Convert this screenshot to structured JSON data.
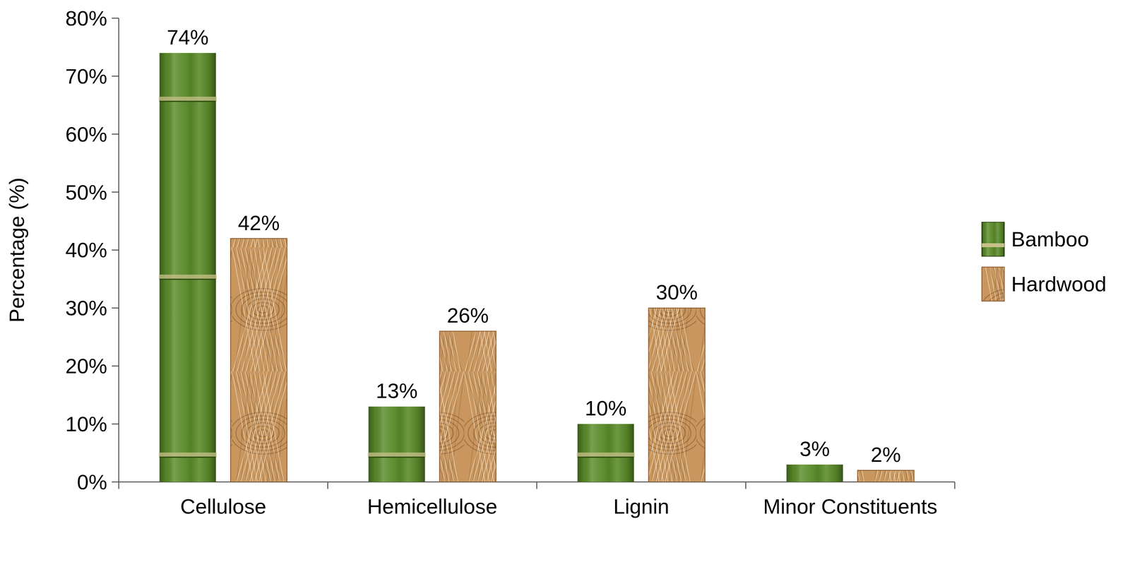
{
  "chart_data": {
    "type": "bar",
    "y_label": "Percentage (%)",
    "categories": [
      "Cellulose",
      "Hemicellulose",
      "Lignin",
      "Minor Constituents"
    ],
    "series": [
      {
        "name": "Bamboo",
        "color": "#5b8c2a",
        "values": [
          74,
          13,
          10,
          3
        ],
        "value_labels": [
          "74%",
          "13%",
          "10%",
          "3%"
        ]
      },
      {
        "name": "Hardwood",
        "color": "#c8965e",
        "values": [
          42,
          26,
          30,
          2
        ],
        "value_labels": [
          "42%",
          "26%",
          "30%",
          "2%"
        ]
      }
    ],
    "ylim": [
      0,
      80
    ],
    "yticks": [
      {
        "value": 0,
        "label": "0%"
      },
      {
        "value": 10,
        "label": "10%"
      },
      {
        "value": 20,
        "label": "20%"
      },
      {
        "value": 30,
        "label": "30%"
      },
      {
        "value": 40,
        "label": "40%"
      },
      {
        "value": 50,
        "label": "50%"
      },
      {
        "value": 60,
        "label": "60%"
      },
      {
        "value": 70,
        "label": "70%"
      },
      {
        "value": 80,
        "label": "80%"
      }
    ],
    "grid": false,
    "legend": "right",
    "data_labels": true
  }
}
